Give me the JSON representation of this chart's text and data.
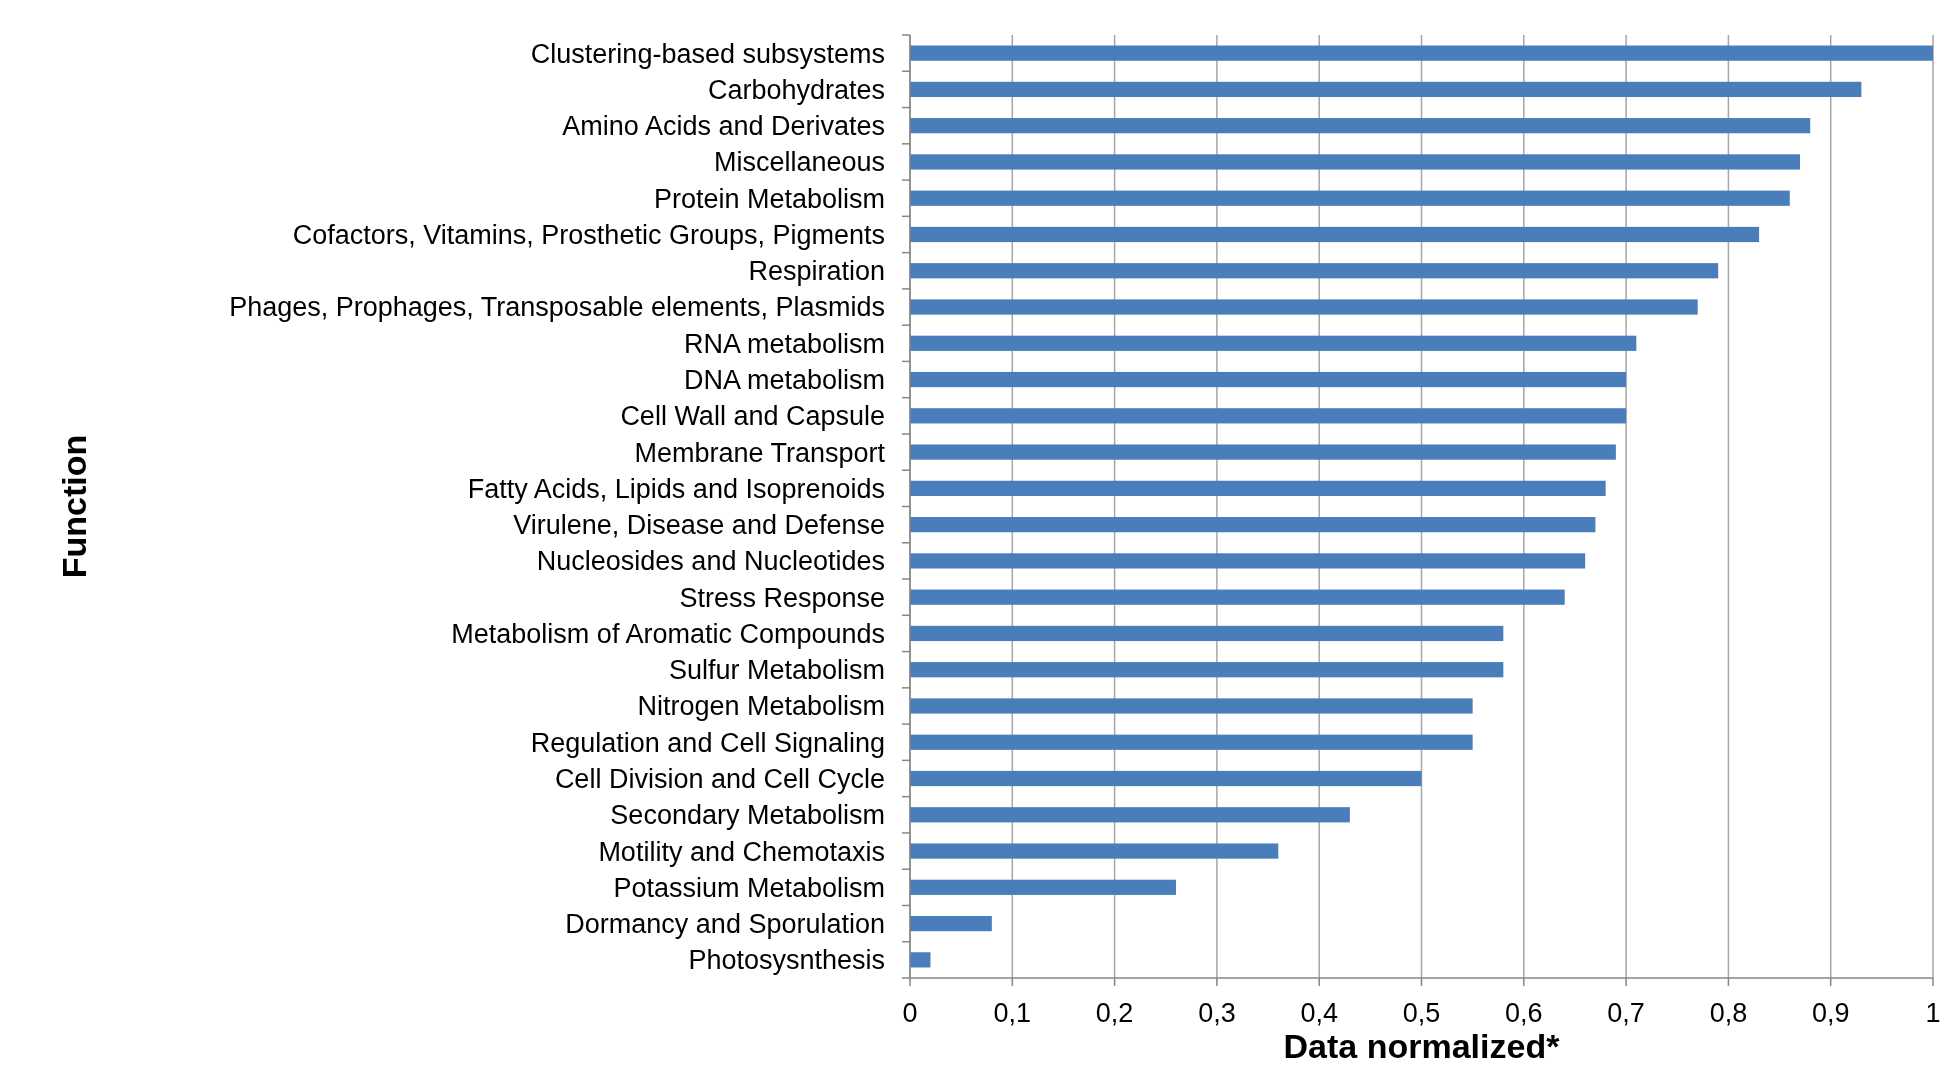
{
  "chart_data": {
    "type": "bar",
    "orientation": "horizontal",
    "xlabel": "Data normalized*",
    "ylabel": "Function",
    "categories": [
      "Clustering-based subsystems",
      "Carbohydrates",
      "Amino Acids and Derivates",
      "Miscellaneous",
      "Protein Metabolism",
      "Cofactors, Vitamins, Prosthetic Groups, Pigments",
      "Respiration",
      "Phages, Prophages, Transposable elements, Plasmids",
      "RNA metabolism",
      "DNA metabolism",
      "Cell Wall and Capsule",
      "Membrane Transport",
      "Fatty Acids, Lipids and Isoprenoids",
      "Virulene, Disease and Defense",
      "Nucleosides and Nucleotides",
      "Stress Response",
      "Metabolism of Aromatic Compounds",
      "Sulfur Metabolism",
      "Nitrogen Metabolism",
      "Regulation and Cell Signaling",
      "Cell Division and Cell Cycle",
      "Secondary Metabolism",
      "Motility and Chemotaxis",
      "Potassium Metabolism",
      "Dormancy and Sporulation",
      "Photosysnthesis"
    ],
    "values": [
      1.0,
      0.93,
      0.88,
      0.87,
      0.86,
      0.83,
      0.79,
      0.77,
      0.71,
      0.7,
      0.7,
      0.69,
      0.68,
      0.67,
      0.66,
      0.64,
      0.58,
      0.58,
      0.55,
      0.55,
      0.5,
      0.43,
      0.36,
      0.26,
      0.08,
      0.02
    ],
    "color": "#4a7ebb",
    "xlim": [
      0,
      1
    ],
    "xticks": [
      0,
      {
        "value": 0.1,
        "label": "0,1"
      },
      {
        "value": 0.2,
        "label": "0,2"
      },
      {
        "value": 0.3,
        "label": "0,3"
      },
      {
        "value": 0.4,
        "label": "0,4"
      },
      {
        "value": 0.5,
        "label": "0,5"
      },
      {
        "value": 0.6,
        "label": "0,6"
      },
      {
        "value": 0.7,
        "label": "0,7"
      },
      {
        "value": 0.8,
        "label": "0,8"
      },
      {
        "value": 0.9,
        "label": "0,9"
      },
      1
    ],
    "grid": "x"
  }
}
